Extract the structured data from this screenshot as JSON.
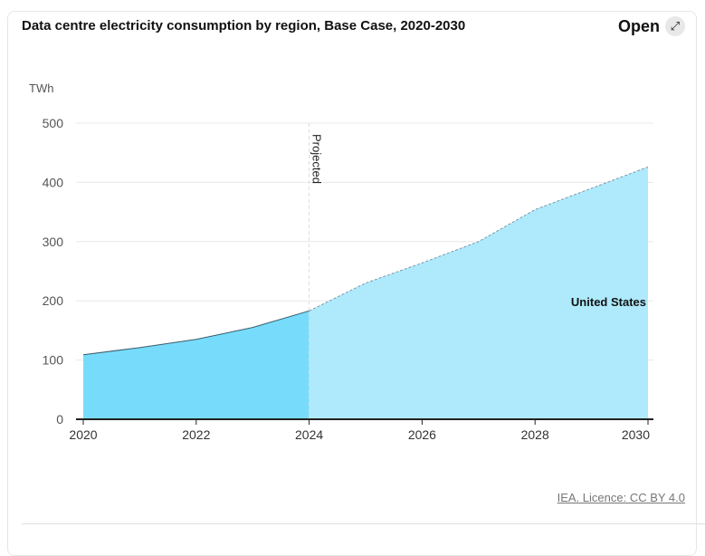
{
  "header": {
    "title": "Data centre electricity consumption by region, Base Case, 2020-2030",
    "open_label": "Open",
    "open_icon": "expand-arrows-icon"
  },
  "footer": {
    "credit": "IEA. Licence: CC BY 4.0"
  },
  "chart_data": {
    "type": "area",
    "title": "Data centre electricity consumption by region, Base Case, 2020-2030",
    "ylabel": "TWh",
    "xlabel": "",
    "ylim": [
      0,
      500
    ],
    "yticks": [
      0,
      100,
      200,
      300,
      400,
      500
    ],
    "xticks": [
      2020,
      2022,
      2024,
      2026,
      2028,
      2030
    ],
    "grid": true,
    "annotation": {
      "label": "Projected",
      "x": 2024
    },
    "x": [
      2020,
      2021,
      2022,
      2023,
      2024,
      2025,
      2026,
      2027,
      2028,
      2029,
      2030
    ],
    "series": [
      {
        "name": "United States",
        "values": [
          109,
          121,
          135,
          155,
          183,
          230,
          264,
          300,
          354,
          390,
          426
        ],
        "color_historical": "#77dcfc",
        "color_projected": "#aeeafc"
      }
    ]
  }
}
